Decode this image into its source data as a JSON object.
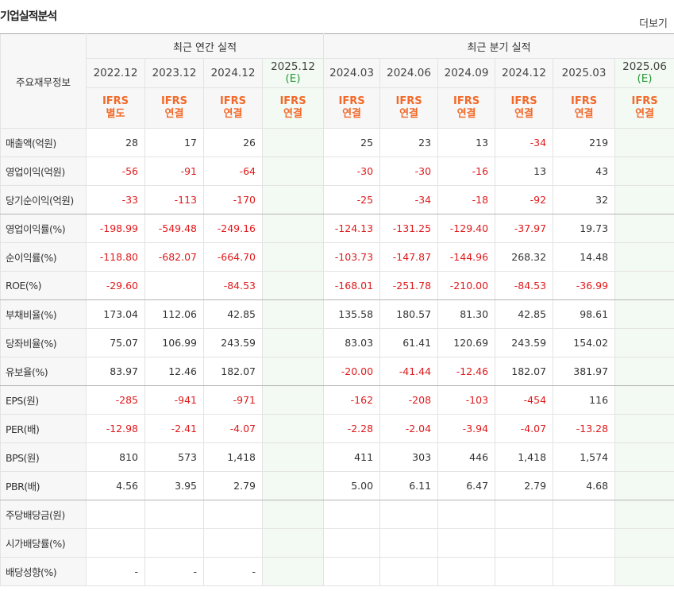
{
  "header": {
    "title": "기업실적분석",
    "more": "더보기"
  },
  "table": {
    "row_header": "주요재무정보",
    "groups": [
      {
        "label": "최근 연간 실적",
        "span": 4
      },
      {
        "label": "최근 분기 실적",
        "span": 6
      }
    ],
    "columns": [
      {
        "date": "2022.12",
        "standard": "IFRS",
        "basis": "별도"
      },
      {
        "date": "2023.12",
        "standard": "IFRS",
        "basis": "연결"
      },
      {
        "date": "2024.12",
        "standard": "IFRS",
        "basis": "연결"
      },
      {
        "date": "2025.12",
        "estimate": "(E)",
        "standard": "IFRS",
        "basis": "연결"
      },
      {
        "date": "2024.03",
        "standard": "IFRS",
        "basis": "연결"
      },
      {
        "date": "2024.06",
        "standard": "IFRS",
        "basis": "연결"
      },
      {
        "date": "2024.09",
        "standard": "IFRS",
        "basis": "연결"
      },
      {
        "date": "2024.12",
        "standard": "IFRS",
        "basis": "연결"
      },
      {
        "date": "2025.03",
        "standard": "IFRS",
        "basis": "연결"
      },
      {
        "date": "2025.06",
        "estimate": "(E)",
        "standard": "IFRS",
        "basis": "연결"
      }
    ],
    "rows": [
      {
        "label": "매출액(억원)",
        "values": [
          "28",
          "17",
          "26",
          null,
          "25",
          "23",
          "13",
          "-34",
          "219",
          null
        ]
      },
      {
        "label": "영업이익(억원)",
        "values": [
          "-56",
          "-91",
          "-64",
          null,
          "-30",
          "-30",
          "-16",
          "13",
          "43",
          null
        ]
      },
      {
        "label": "당기순이익(억원)",
        "values": [
          "-33",
          "-113",
          "-170",
          null,
          "-25",
          "-34",
          "-18",
          "-92",
          "32",
          null
        ]
      },
      {
        "label": "영업이익률(%)",
        "values": [
          "-198.99",
          "-549.48",
          "-249.16",
          null,
          "-124.13",
          "-131.25",
          "-129.40",
          "-37.97",
          "19.73",
          null
        ]
      },
      {
        "label": "순이익률(%)",
        "values": [
          "-118.80",
          "-682.07",
          "-664.70",
          null,
          "-103.73",
          "-147.87",
          "-144.96",
          "268.32",
          "14.48",
          null
        ]
      },
      {
        "label": "ROE(%)",
        "values": [
          "-29.60",
          null,
          "-84.53",
          null,
          "-168.01",
          "-251.78",
          "-210.00",
          "-84.53",
          "-36.99",
          null
        ]
      },
      {
        "label": "부채비율(%)",
        "values": [
          "173.04",
          "112.06",
          "42.85",
          null,
          "135.58",
          "180.57",
          "81.30",
          "42.85",
          "98.61",
          null
        ]
      },
      {
        "label": "당좌비율(%)",
        "values": [
          "75.07",
          "106.99",
          "243.59",
          null,
          "83.03",
          "61.41",
          "120.69",
          "243.59",
          "154.02",
          null
        ]
      },
      {
        "label": "유보율(%)",
        "values": [
          "83.97",
          "12.46",
          "182.07",
          null,
          "-20.00",
          "-41.44",
          "-12.46",
          "182.07",
          "381.97",
          null
        ]
      },
      {
        "label": "EPS(원)",
        "values": [
          "-285",
          "-941",
          "-971",
          null,
          "-162",
          "-208",
          "-103",
          "-454",
          "116",
          null
        ]
      },
      {
        "label": "PER(배)",
        "values": [
          "-12.98",
          "-2.41",
          "-4.07",
          null,
          "-2.28",
          "-2.04",
          "-3.94",
          "-4.07",
          "-13.28",
          null
        ]
      },
      {
        "label": "BPS(원)",
        "values": [
          "810",
          "573",
          "1,418",
          null,
          "411",
          "303",
          "446",
          "1,418",
          "1,574",
          null
        ]
      },
      {
        "label": "PBR(배)",
        "values": [
          "4.56",
          "3.95",
          "2.79",
          null,
          "5.00",
          "6.11",
          "6.47",
          "2.79",
          "4.68",
          null
        ]
      },
      {
        "label": "주당배당금(원)",
        "values": [
          null,
          null,
          null,
          null,
          null,
          null,
          null,
          null,
          null,
          null
        ]
      },
      {
        "label": "시가배당률(%)",
        "values": [
          null,
          null,
          null,
          null,
          null,
          null,
          null,
          null,
          null,
          null
        ]
      },
      {
        "label": "배당성향(%)",
        "values": [
          "-",
          "-",
          "-",
          null,
          null,
          null,
          null,
          null,
          null,
          null
        ]
      }
    ],
    "group_ends": [
      2,
      5,
      8,
      12
    ]
  }
}
